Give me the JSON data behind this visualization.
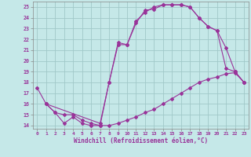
{
  "title": "",
  "xlabel": "Windchill (Refroidissement éolien,°C)",
  "ylabel": "",
  "bg_color": "#c5e8e8",
  "grid_color": "#a0c8c8",
  "line_color": "#993399",
  "xlim": [
    -0.5,
    23.5
  ],
  "ylim": [
    13.7,
    25.5
  ],
  "xticks": [
    0,
    1,
    2,
    3,
    4,
    5,
    6,
    7,
    8,
    9,
    10,
    11,
    12,
    13,
    14,
    15,
    16,
    17,
    18,
    19,
    20,
    21,
    22,
    23
  ],
  "yticks": [
    14,
    15,
    16,
    17,
    18,
    19,
    20,
    21,
    22,
    23,
    24,
    25
  ],
  "line1_x": [
    1,
    2,
    3,
    4,
    5,
    6,
    7,
    8,
    9,
    10,
    11,
    12,
    13,
    14,
    15,
    16,
    17,
    18,
    19,
    20,
    21,
    22,
    23
  ],
  "line1_y": [
    16.0,
    15.2,
    14.2,
    14.8,
    14.2,
    14.0,
    14.0,
    14.0,
    14.2,
    14.5,
    14.8,
    15.2,
    15.5,
    16.0,
    16.5,
    17.0,
    17.5,
    18.0,
    18.3,
    18.5,
    18.8,
    18.9,
    18.0
  ],
  "line2_x": [
    0,
    1,
    2,
    3,
    4,
    5,
    6,
    7,
    8,
    9,
    10,
    11,
    12,
    13,
    14,
    15,
    16,
    17,
    18,
    19,
    20,
    21,
    22,
    23
  ],
  "line2_y": [
    17.5,
    16.0,
    15.2,
    15.0,
    15.0,
    14.5,
    14.2,
    14.0,
    18.0,
    21.5,
    21.5,
    23.5,
    24.7,
    24.8,
    25.2,
    25.2,
    25.2,
    25.0,
    24.0,
    23.2,
    22.8,
    19.3,
    19.0,
    18.0
  ],
  "line3_x": [
    1,
    7,
    8,
    9,
    10,
    11,
    12,
    13,
    14,
    15,
    16,
    17,
    18,
    19,
    20,
    21,
    22,
    23
  ],
  "line3_y": [
    16.0,
    14.2,
    18.0,
    21.7,
    21.5,
    23.7,
    24.5,
    25.0,
    25.2,
    25.2,
    25.2,
    25.0,
    24.0,
    23.2,
    22.8,
    21.2,
    19.0,
    18.0
  ],
  "marker": "D",
  "markersize": 2.0,
  "linewidth": 0.8,
  "tick_labelsize": 4.5,
  "xlabel_fontsize": 5.5
}
